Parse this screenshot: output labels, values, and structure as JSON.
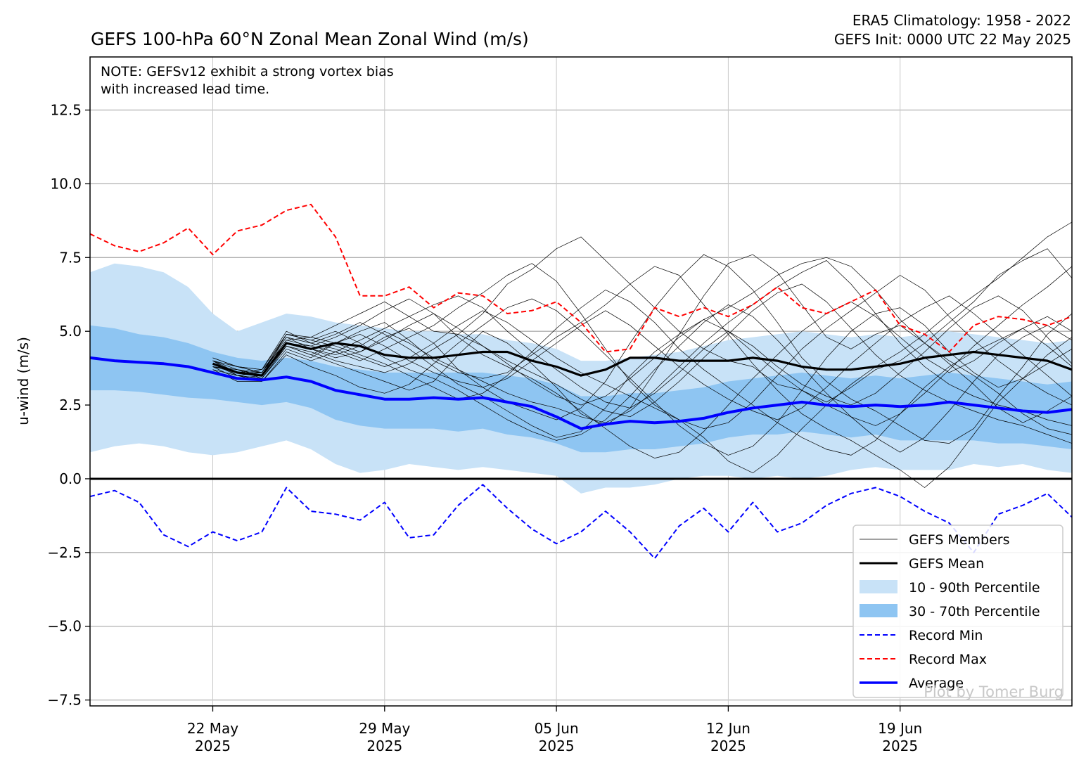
{
  "chart_data": {
    "type": "line",
    "title": "GEFS 100-hPa 60°N Zonal Mean Zonal Wind (m/s)",
    "subtitle_right": [
      "ERA5 Climatology: 1958 - 2022",
      "GEFS Init: 0000 UTC 22 May 2025"
    ],
    "ylabel": "u-wind (m/s)",
    "xlabel": "",
    "note": [
      "NOTE: GEFSv12 exhibit a strong vortex bias",
      "with increased lead time."
    ],
    "watermark": "Plot by Tomer Burg",
    "xlim": [
      "2025-05-17",
      "2025-06-26"
    ],
    "ylim": [
      -7.7,
      14.3
    ],
    "x_ticks": [
      {
        "date": "2025-05-22",
        "label": [
          "22 May",
          "2025"
        ]
      },
      {
        "date": "2025-05-29",
        "label": [
          "29 May",
          "2025"
        ]
      },
      {
        "date": "2025-06-05",
        "label": [
          "05 Jun",
          "2025"
        ]
      },
      {
        "date": "2025-06-12",
        "label": [
          "12 Jun",
          "2025"
        ]
      },
      {
        "date": "2025-06-19",
        "label": [
          "19 Jun",
          "2025"
        ]
      }
    ],
    "y_ticks": [
      {
        "value": 12.5,
        "label": "12.5"
      },
      {
        "value": 10.0,
        "label": "10.0"
      },
      {
        "value": 7.5,
        "label": "7.5"
      },
      {
        "value": 5.0,
        "label": "5.0"
      },
      {
        "value": 2.5,
        "label": "2.5"
      },
      {
        "value": 0.0,
        "label": "0.0"
      },
      {
        "value": -2.5,
        "label": "−2.5"
      },
      {
        "value": -5.0,
        "label": "−5.0"
      },
      {
        "value": -7.5,
        "label": "−7.5"
      }
    ],
    "grid": true,
    "legend_position": "bottom-right",
    "colors": {
      "members": "#000000",
      "mean": "#000000",
      "p10_90": "#c8e2f7",
      "p30_70": "#8ec5f2",
      "record_min": "#0000ff",
      "record_max": "#ff0000",
      "average": "#0000ff",
      "zero_line": "#000000"
    },
    "legend": [
      {
        "key": "members",
        "label": "GEFS Members"
      },
      {
        "key": "mean",
        "label": "GEFS Mean"
      },
      {
        "key": "p10_90",
        "label": "10 - 90th Percentile"
      },
      {
        "key": "p30_70",
        "label": "30 - 70th Percentile"
      },
      {
        "key": "record_min",
        "label": "Record Min"
      },
      {
        "key": "record_max",
        "label": "Record Max"
      },
      {
        "key": "average",
        "label": "Average"
      }
    ],
    "climo_x": [
      "2025-05-17",
      "2025-05-18",
      "2025-05-19",
      "2025-05-20",
      "2025-05-21",
      "2025-05-22",
      "2025-05-23",
      "2025-05-24",
      "2025-05-25",
      "2025-05-26",
      "2025-05-27",
      "2025-05-28",
      "2025-05-29",
      "2025-05-30",
      "2025-05-31",
      "2025-06-01",
      "2025-06-02",
      "2025-06-03",
      "2025-06-04",
      "2025-06-05",
      "2025-06-06",
      "2025-06-07",
      "2025-06-08",
      "2025-06-09",
      "2025-06-10",
      "2025-06-11",
      "2025-06-12",
      "2025-06-13",
      "2025-06-14",
      "2025-06-15",
      "2025-06-16",
      "2025-06-17",
      "2025-06-18",
      "2025-06-19",
      "2025-06-20",
      "2025-06-21",
      "2025-06-22",
      "2025-06-23",
      "2025-06-24",
      "2025-06-25",
      "2025-06-26"
    ],
    "average": [
      4.1,
      4.0,
      3.95,
      3.9,
      3.8,
      3.6,
      3.4,
      3.35,
      3.45,
      3.3,
      3.0,
      2.85,
      2.7,
      2.7,
      2.75,
      2.7,
      2.75,
      2.6,
      2.45,
      2.1,
      1.7,
      1.85,
      1.95,
      1.9,
      1.95,
      2.05,
      2.25,
      2.4,
      2.5,
      2.6,
      2.5,
      2.45,
      2.5,
      2.45,
      2.5,
      2.6,
      2.5,
      2.4,
      2.3,
      2.25,
      2.35
    ],
    "p10": [
      0.9,
      1.1,
      1.2,
      1.1,
      0.9,
      0.8,
      0.9,
      1.1,
      1.3,
      1.0,
      0.5,
      0.2,
      0.3,
      0.5,
      0.4,
      0.3,
      0.4,
      0.3,
      0.2,
      0.1,
      -0.5,
      -0.3,
      -0.3,
      -0.2,
      0.0,
      0.1,
      0.1,
      0.0,
      0.1,
      0.0,
      0.1,
      0.3,
      0.4,
      0.3,
      0.3,
      0.3,
      0.5,
      0.4,
      0.5,
      0.3,
      0.2
    ],
    "p30": [
      3.0,
      3.0,
      2.95,
      2.85,
      2.75,
      2.7,
      2.6,
      2.5,
      2.6,
      2.4,
      2.0,
      1.8,
      1.7,
      1.7,
      1.7,
      1.6,
      1.7,
      1.5,
      1.4,
      1.2,
      0.9,
      0.9,
      1.0,
      1.0,
      1.1,
      1.2,
      1.4,
      1.5,
      1.5,
      1.6,
      1.5,
      1.4,
      1.5,
      1.3,
      1.3,
      1.3,
      1.3,
      1.2,
      1.2,
      1.1,
      1.0
    ],
    "p70": [
      5.2,
      5.1,
      4.9,
      4.8,
      4.6,
      4.3,
      4.1,
      4.0,
      4.1,
      4.0,
      3.8,
      3.7,
      3.6,
      3.6,
      3.6,
      3.6,
      3.6,
      3.5,
      3.4,
      3.2,
      2.8,
      2.8,
      2.9,
      2.9,
      3.0,
      3.1,
      3.3,
      3.4,
      3.5,
      3.6,
      3.5,
      3.4,
      3.5,
      3.4,
      3.5,
      3.6,
      3.5,
      3.4,
      3.3,
      3.2,
      3.3
    ],
    "p90": [
      7.0,
      7.3,
      7.2,
      7.0,
      6.5,
      5.6,
      5.0,
      5.3,
      5.6,
      5.5,
      5.3,
      5.2,
      5.1,
      5.0,
      5.0,
      4.9,
      4.9,
      4.7,
      4.6,
      4.4,
      4.0,
      4.0,
      4.1,
      4.2,
      4.3,
      4.5,
      4.7,
      4.8,
      4.9,
      5.0,
      4.9,
      4.8,
      4.9,
      4.8,
      4.9,
      5.0,
      4.9,
      4.8,
      4.7,
      4.6,
      4.7
    ],
    "record_max": [
      8.3,
      7.9,
      7.7,
      8.0,
      8.5,
      7.6,
      8.4,
      8.6,
      9.1,
      9.3,
      8.2,
      6.2,
      6.2,
      6.5,
      5.8,
      6.3,
      6.2,
      5.6,
      5.7,
      6.0,
      5.3,
      4.3,
      4.4,
      5.8,
      5.5,
      5.8,
      5.5,
      5.9,
      6.5,
      5.8,
      5.6,
      6.0,
      6.4,
      5.2,
      4.9,
      4.3,
      5.2,
      5.5,
      5.4,
      5.2,
      5.5
    ],
    "record_min": [
      -0.6,
      -0.4,
      -0.8,
      -1.9,
      -2.3,
      -1.8,
      -2.1,
      -1.8,
      -0.3,
      -1.1,
      -1.2,
      -1.4,
      -0.8,
      -2.0,
      -1.9,
      -0.9,
      -0.2,
      -1.0,
      -1.7,
      -2.2,
      -1.8,
      -1.1,
      -1.8,
      -2.7,
      -1.6,
      -1.0,
      -1.8,
      -0.8,
      -1.8,
      -1.5,
      -0.9,
      -0.5,
      -0.3,
      -0.6,
      -1.1,
      -1.5,
      -2.5,
      -1.2,
      -0.9,
      -0.5,
      -1.3
    ],
    "gefs_mean_x": [
      "2025-05-22",
      "2025-05-23",
      "2025-05-24",
      "2025-05-25",
      "2025-05-26",
      "2025-05-27",
      "2025-05-28",
      "2025-05-29",
      "2025-05-30",
      "2025-05-31",
      "2025-06-01",
      "2025-06-02",
      "2025-06-03",
      "2025-06-04",
      "2025-06-05",
      "2025-06-06",
      "2025-06-07",
      "2025-06-08",
      "2025-06-09",
      "2025-06-10",
      "2025-06-11",
      "2025-06-12",
      "2025-06-13",
      "2025-06-14",
      "2025-06-15",
      "2025-06-16",
      "2025-06-17",
      "2025-06-18",
      "2025-06-19",
      "2025-06-20",
      "2025-06-21",
      "2025-06-22",
      "2025-06-23",
      "2025-06-24",
      "2025-06-25",
      "2025-06-26"
    ],
    "gefs_mean": [
      3.9,
      3.6,
      3.5,
      4.6,
      4.4,
      4.6,
      4.5,
      4.2,
      4.1,
      4.1,
      4.2,
      4.3,
      4.3,
      4.0,
      3.8,
      3.5,
      3.7,
      4.1,
      4.1,
      4.0,
      4.0,
      4.0,
      4.1,
      4.0,
      3.8,
      3.7,
      3.7,
      3.8,
      3.9,
      4.1,
      4.2,
      4.3,
      4.2,
      4.1,
      4.0,
      3.7
    ],
    "members_x": [
      "2025-05-22",
      "2025-05-23",
      "2025-05-24",
      "2025-05-25",
      "2025-05-26",
      "2025-05-27",
      "2025-05-28",
      "2025-05-29",
      "2025-05-30",
      "2025-05-31",
      "2025-06-01",
      "2025-06-02",
      "2025-06-03",
      "2025-06-04",
      "2025-06-05",
      "2025-06-06",
      "2025-06-07",
      "2025-06-08",
      "2025-06-09",
      "2025-06-10",
      "2025-06-11",
      "2025-06-12",
      "2025-06-13",
      "2025-06-14",
      "2025-06-15",
      "2025-06-16",
      "2025-06-17",
      "2025-06-18",
      "2025-06-19",
      "2025-06-20",
      "2025-06-21",
      "2025-06-22",
      "2025-06-23",
      "2025-06-24",
      "2025-06-25",
      "2025-06-26"
    ],
    "members": [
      [
        3.9,
        3.6,
        3.6,
        4.7,
        4.8,
        5.2,
        5.6,
        6.0,
        5.5,
        5.0,
        4.9,
        5.6,
        6.6,
        7.1,
        7.8,
        8.2,
        7.4,
        6.6,
        5.8,
        5.0,
        4.4,
        4.0,
        3.8,
        3.2,
        3.0,
        2.6,
        3.1,
        3.7,
        4.0,
        4.6,
        5.3,
        6.0,
        6.9,
        7.4,
        7.8,
        6.8
      ],
      [
        3.8,
        3.7,
        3.4,
        4.5,
        4.2,
        3.9,
        3.6,
        3.3,
        3.0,
        3.3,
        4.2,
        5.0,
        4.6,
        3.9,
        3.1,
        2.2,
        1.8,
        2.4,
        3.6,
        4.9,
        6.2,
        7.3,
        7.6,
        7.0,
        5.9,
        4.8,
        4.4,
        4.9,
        5.2,
        4.6,
        3.9,
        3.2,
        2.4,
        1.9,
        2.3,
        2.8
      ],
      [
        4.0,
        3.5,
        3.6,
        4.8,
        4.4,
        4.1,
        4.3,
        4.8,
        5.1,
        4.6,
        3.7,
        3.1,
        2.6,
        2.3,
        2.0,
        2.4,
        3.3,
        4.6,
        5.8,
        6.8,
        7.6,
        7.2,
        6.4,
        5.3,
        4.1,
        3.3,
        2.7,
        2.3,
        1.8,
        1.3,
        1.2,
        1.7,
        2.8,
        3.8,
        4.9,
        5.6
      ],
      [
        3.7,
        3.3,
        3.3,
        4.2,
        3.8,
        3.5,
        3.1,
        2.9,
        3.2,
        3.9,
        4.6,
        5.2,
        5.8,
        6.1,
        5.7,
        5.0,
        4.2,
        3.4,
        2.6,
        1.8,
        1.2,
        0.8,
        1.1,
        1.9,
        3.0,
        4.1,
        5.0,
        5.6,
        5.8,
        5.2,
        4.3,
        3.6,
        3.1,
        3.4,
        4.2,
        4.8
      ],
      [
        4.1,
        3.8,
        3.7,
        5.0,
        4.6,
        4.9,
        5.3,
        4.9,
        4.4,
        3.8,
        3.2,
        2.8,
        2.3,
        1.8,
        1.4,
        1.6,
        2.4,
        3.5,
        4.3,
        4.9,
        5.4,
        5.8,
        6.3,
        6.9,
        7.3,
        7.5,
        7.2,
        6.4,
        5.4,
        4.6,
        4.0,
        3.5,
        2.9,
        2.2,
        1.7,
        1.5
      ],
      [
        3.8,
        3.6,
        3.7,
        4.6,
        4.5,
        4.3,
        4.0,
        4.4,
        4.8,
        5.2,
        5.8,
        6.3,
        6.9,
        7.3,
        6.7,
        5.6,
        4.4,
        3.3,
        2.5,
        2.0,
        1.4,
        0.6,
        0.2,
        0.8,
        1.7,
        2.5,
        3.2,
        3.8,
        4.3,
        4.9,
        5.6,
        6.2,
        6.8,
        7.5,
        8.2,
        8.7
      ],
      [
        3.9,
        3.5,
        3.4,
        4.4,
        4.1,
        4.6,
        5.0,
        5.3,
        4.7,
        4.0,
        3.6,
        3.4,
        3.6,
        4.2,
        4.8,
        5.3,
        5.9,
        6.6,
        7.2,
        6.9,
        5.9,
        4.9,
        3.9,
        3.0,
        2.2,
        1.7,
        1.3,
        0.8,
        0.3,
        -0.3,
        0.4,
        1.5,
        2.6,
        3.4,
        3.9,
        4.4
      ],
      [
        4.0,
        3.7,
        3.5,
        4.9,
        4.7,
        5.0,
        4.6,
        4.1,
        3.7,
        3.4,
        3.0,
        2.5,
        2.0,
        1.6,
        1.3,
        1.5,
        2.0,
        2.8,
        3.7,
        4.5,
        5.3,
        5.9,
        5.5,
        4.7,
        3.8,
        2.9,
        2.1,
        1.4,
        0.9,
        1.4,
        2.3,
        3.3,
        4.2,
        4.8,
        5.2,
        4.7
      ],
      [
        3.8,
        3.4,
        3.5,
        4.5,
        4.3,
        4.0,
        3.8,
        3.6,
        3.9,
        4.4,
        4.9,
        4.5,
        4.0,
        3.6,
        3.2,
        2.7,
        2.3,
        2.1,
        2.6,
        3.3,
        4.1,
        4.9,
        5.7,
        6.3,
        6.6,
        6.0,
        5.1,
        4.2,
        3.5,
        3.0,
        2.6,
        2.3,
        2.0,
        1.8,
        1.5,
        1.2
      ],
      [
        3.9,
        3.6,
        3.6,
        4.7,
        4.5,
        4.8,
        5.2,
        5.7,
        6.1,
        5.6,
        4.8,
        4.2,
        3.8,
        3.4,
        2.9,
        2.3,
        1.7,
        1.1,
        0.7,
        0.9,
        1.6,
        2.5,
        3.4,
        4.2,
        5.0,
        5.6,
        6.0,
        5.5,
        4.8,
        4.1,
        3.6,
        4.0,
        4.6,
        5.1,
        5.5,
        5.0
      ],
      [
        4.1,
        3.8,
        3.6,
        4.9,
        4.7,
        4.5,
        4.2,
        3.9,
        3.5,
        3.1,
        2.7,
        2.9,
        3.5,
        4.3,
        5.1,
        5.8,
        6.4,
        6.0,
        5.3,
        4.4,
        3.7,
        3.1,
        2.5,
        1.9,
        1.4,
        1.0,
        0.8,
        1.3,
        2.2,
        3.1,
        3.8,
        4.3,
        4.7,
        5.1,
        4.5,
        3.8
      ],
      [
        3.7,
        3.5,
        3.3,
        4.3,
        4.0,
        4.3,
        4.7,
        5.1,
        5.5,
        5.9,
        6.2,
        5.8,
        5.0,
        4.3,
        3.7,
        3.1,
        2.6,
        2.4,
        2.9,
        3.6,
        4.4,
        5.0,
        4.5,
        3.8,
        3.2,
        2.8,
        2.5,
        2.9,
        3.6,
        4.3,
        5.1,
        5.8,
        6.2,
        5.7,
        4.8,
        3.9
      ],
      [
        4.0,
        3.6,
        3.5,
        4.6,
        4.4,
        4.2,
        4.5,
        5.0,
        4.6,
        4.1,
        3.7,
        3.3,
        2.9,
        2.6,
        2.4,
        2.1,
        1.9,
        2.3,
        3.0,
        3.8,
        4.6,
        5.3,
        5.9,
        6.5,
        7.0,
        7.4,
        6.6,
        5.6,
        4.6,
        3.8,
        3.2,
        2.8,
        2.5,
        2.3,
        2.0,
        1.8
      ],
      [
        3.8,
        3.7,
        3.6,
        4.8,
        4.6,
        4.4,
        4.1,
        3.8,
        4.1,
        4.6,
        5.2,
        5.7,
        5.3,
        4.7,
        4.1,
        3.6,
        3.2,
        2.8,
        2.4,
        2.0,
        1.7,
        1.9,
        2.6,
        3.5,
        4.4,
        5.1,
        5.7,
        6.3,
        6.9,
        6.4,
        5.5,
        4.7,
        4.0,
        3.4,
        2.9,
        2.5
      ],
      [
        3.9,
        3.5,
        3.4,
        4.5,
        4.2,
        4.6,
        4.9,
        4.5,
        4.0,
        3.6,
        3.3,
        3.1,
        3.4,
        4.0,
        4.6,
        5.2,
        5.7,
        5.2,
        4.5,
        3.8,
        3.2,
        2.7,
        2.3,
        2.0,
        2.4,
        3.1,
        3.9,
        4.6,
        5.3,
        5.8,
        6.2,
        5.6,
        4.9,
        4.2,
        3.5,
        2.8
      ],
      [
        4.0,
        3.8,
        3.7,
        4.9,
        4.8,
        4.6,
        4.3,
        4.7,
        5.2,
        5.6,
        5.1,
        4.5,
        3.9,
        3.3,
        2.8,
        2.5,
        2.8,
        3.4,
        4.1,
        4.8,
        5.4,
        5.0,
        4.3,
        3.6,
        3.0,
        2.5,
        2.1,
        1.8,
        2.2,
        2.9,
        3.7,
        4.5,
        5.2,
        5.9,
        6.5,
        7.2
      ]
    ]
  }
}
